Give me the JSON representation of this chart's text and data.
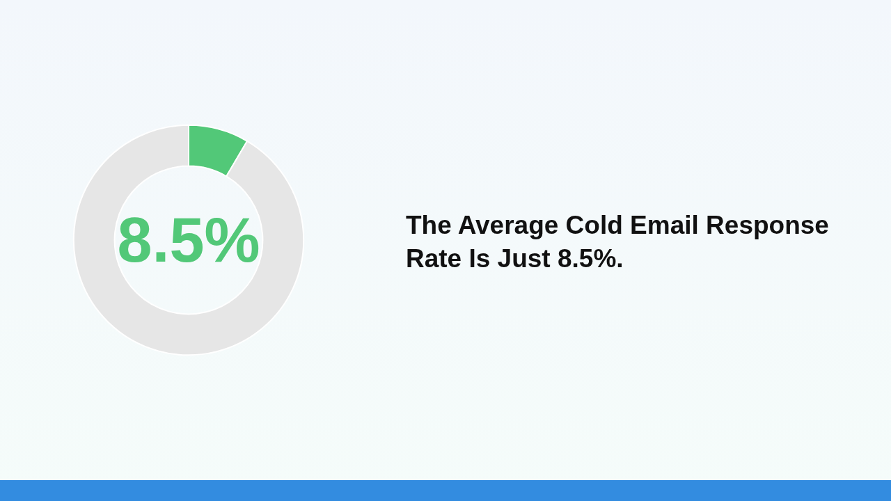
{
  "chart_data": {
    "type": "donut",
    "title": "The Average Cold Email Response Rate Is Just 8.5%.",
    "categories": [
      null,
      null
    ],
    "values": [
      8.5,
      91.5
    ],
    "colors": [
      "#52c878",
      "#e6e6e6"
    ],
    "annotations": [
      "8.5%"
    ]
  }
}
